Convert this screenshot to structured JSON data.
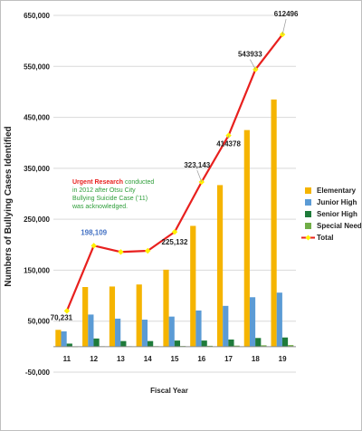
{
  "chart_data": {
    "type": "bar",
    "xlabel": "Fiscal Year",
    "ylabel": "Numbers of Bullying Cases Identified",
    "ylim": [
      -50000,
      650000
    ],
    "yticks": [
      -50000,
      50000,
      150000,
      250000,
      350000,
      450000,
      550000,
      650000
    ],
    "ytick_labels": [
      "-50,000",
      "50,000",
      "150,000",
      "250,000",
      "350,000",
      "450,000",
      "550,000",
      "650,000"
    ],
    "categories": [
      "11",
      "12",
      "13",
      "14",
      "15",
      "16",
      "17",
      "18",
      "19"
    ],
    "grid": true,
    "legend_position": "right",
    "series": [
      {
        "name": "Elementary",
        "kind": "bar",
        "color": "#F5B400",
        "values": [
          33000,
          117000,
          118000,
          122000,
          151000,
          237000,
          317000,
          425000,
          485000
        ]
      },
      {
        "name": "Junior High",
        "kind": "bar",
        "color": "#5B9BD5",
        "values": [
          30000,
          63000,
          55000,
          53000,
          59000,
          71000,
          80000,
          97000,
          106000
        ]
      },
      {
        "name": "Senior High",
        "kind": "bar",
        "color": "#1E7B3A",
        "values": [
          6000,
          16000,
          11000,
          11000,
          12000,
          12000,
          14000,
          17000,
          18000
        ]
      },
      {
        "name": "Special Needs",
        "kind": "bar",
        "color": "#70AD47",
        "values": [
          300,
          800,
          800,
          950,
          1270,
          1700,
          2040,
          2680,
          3080
        ]
      },
      {
        "name": "Total",
        "kind": "line",
        "color": "#E8201E",
        "marker_color": "#FFF200",
        "values": [
          70231,
          198109,
          185803,
          188072,
          225132,
          323143,
          414378,
          543933,
          612496
        ]
      }
    ],
    "data_labels": [
      {
        "index": 0,
        "text": "70,231",
        "color": "#222222"
      },
      {
        "index": 1,
        "text": "198,109",
        "color": "#4472C4"
      },
      {
        "index": 4,
        "text": "225,132",
        "color": "#222222"
      },
      {
        "index": 5,
        "text": "323,143",
        "color": "#222222"
      },
      {
        "index": 6,
        "text": "414378",
        "color": "#222222"
      },
      {
        "index": 7,
        "text": "543933",
        "color": "#222222"
      },
      {
        "index": 8,
        "text": "612496",
        "color": "#222222"
      }
    ],
    "annotation": {
      "lines": [
        [
          {
            "text": "Urgent Research",
            "color": "#E8201E"
          },
          {
            "text": " conducted",
            "color": "#2E9E3A"
          }
        ],
        [
          {
            "text": "in 2012 after Otsu City",
            "color": "#2E9E3A"
          }
        ],
        [
          {
            "text": "Bullying Suicide Case (’11)",
            "color": "#2E9E3A"
          }
        ],
        [
          {
            "text": "was acknowledged.",
            "color": "#2E9E3A"
          }
        ]
      ]
    }
  }
}
